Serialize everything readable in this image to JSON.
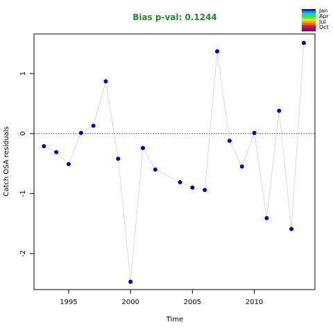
{
  "chart_data": {
    "type": "scatter",
    "title": "Bias p-val: 0.1244",
    "title_color": "#228B22",
    "xlabel": "Time",
    "ylabel": "Catch OSA residuals",
    "xlim": [
      1992.2,
      2014.9
    ],
    "ylim": [
      -2.6,
      1.66
    ],
    "xticks": [
      1995,
      2000,
      2005,
      2010
    ],
    "yticks": [
      -2,
      -1,
      0,
      1
    ],
    "reference_line": 0,
    "line_color": "#d3d3d3",
    "point_color": "#0000cd",
    "legend": {
      "placement": "top-right",
      "entries": [
        "Jan",
        "Apr",
        "Jul",
        "Oct"
      ],
      "colors": [
        "#1c1cc9",
        "#1a8fe0",
        "#18d0e8",
        "#20e060",
        "#80e020",
        "#e8e020",
        "#f0a018",
        "#f06018",
        "#e02020",
        "#b01060",
        "#700080"
      ]
    },
    "series": [
      {
        "x": [
          1993,
          1994,
          1995,
          1996,
          1997,
          1998,
          1999,
          2000,
          2001,
          2002,
          2004,
          2005,
          2006,
          2007,
          2008,
          2009,
          2010,
          2011,
          2012,
          2013,
          2014
        ],
        "y": [
          -0.21,
          -0.31,
          -0.51,
          0.01,
          0.13,
          0.87,
          -0.42,
          -2.47,
          -0.24,
          -0.6,
          -0.81,
          -0.9,
          -0.94,
          1.37,
          -0.12,
          -0.55,
          0.01,
          -1.41,
          0.38,
          -1.59,
          1.51
        ]
      }
    ]
  }
}
